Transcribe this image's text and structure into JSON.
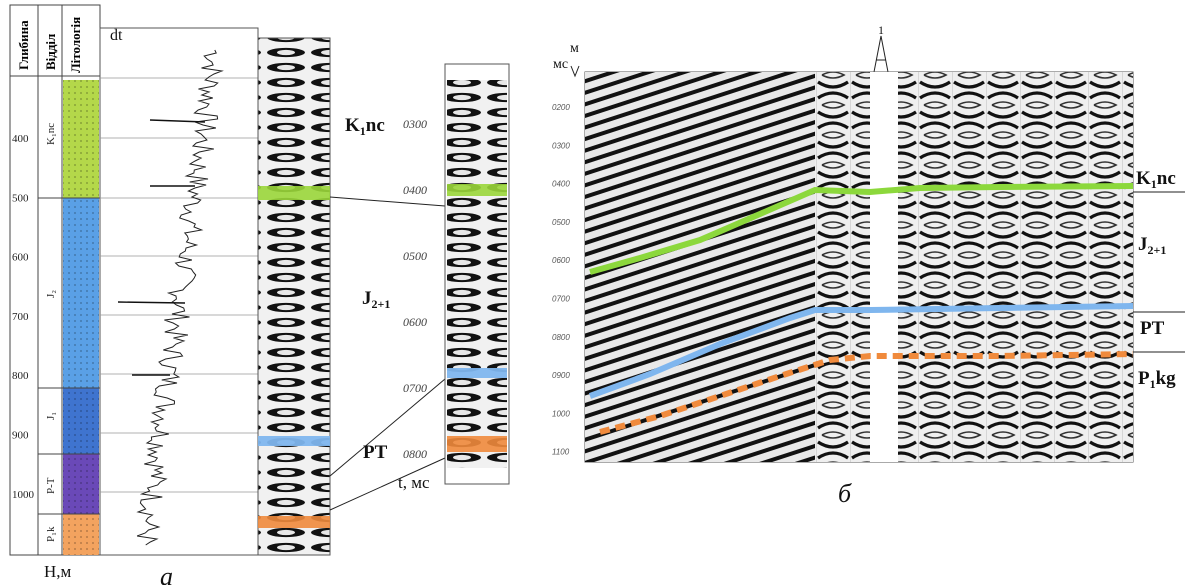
{
  "panel_a": {
    "letter": "а",
    "headers": [
      "Глибина",
      "Відділ",
      "Літологія"
    ],
    "depth_axis_label": "Н,м",
    "log_label": "dt",
    "depth_ticks": [
      "400",
      "500",
      "600",
      "700",
      "800",
      "900",
      "1000"
    ],
    "stratigraphy": [
      {
        "label": "K₁nc",
        "color": "#b4d84a"
      },
      {
        "label": "J₂",
        "color": "#5aa0e6"
      },
      {
        "label": "J₁",
        "color": "#3f74cf"
      },
      {
        "label": "P-T",
        "color": "#6a49b8"
      },
      {
        "label": "P₁k",
        "color": "#f3a35f"
      }
    ]
  },
  "middle_trace": {
    "time_axis_label": "t, мс",
    "time_ticks": [
      "0300",
      "0400",
      "0500",
      "0600",
      "0700",
      "0800"
    ],
    "labels": [
      {
        "base": "K",
        "sub": "1",
        "tail": "nc"
      },
      {
        "base": "J",
        "sub": "2+1",
        "tail": ""
      },
      {
        "base": "PT",
        "sub": "",
        "tail": ""
      }
    ]
  },
  "panel_b": {
    "letter": "б",
    "axis_top_label": "м",
    "axis_left_label": "мс",
    "well_marker": "1",
    "time_ticks": [
      "0200",
      "0300",
      "0400",
      "0500",
      "0600",
      "0700",
      "0800",
      "0900",
      "1000",
      "1100"
    ],
    "horizons": [
      {
        "base": "K",
        "sub": "1",
        "tail": "nc",
        "color": "#8cd83c"
      },
      {
        "base": "J",
        "sub": "2+1",
        "tail": "",
        "color": ""
      },
      {
        "base": "PT",
        "sub": "",
        "tail": "",
        "color": "#7fb6ee"
      },
      {
        "base": "P",
        "sub": "1",
        "tail": "kg",
        "color": "#f08a3c"
      }
    ]
  }
}
